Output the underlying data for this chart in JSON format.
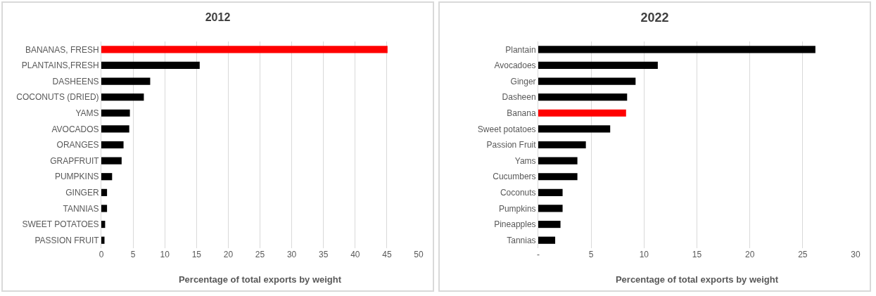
{
  "chart_data": [
    {
      "type": "bar",
      "title": "2012",
      "orientation": "horizontal",
      "xlabel": "Percentage of total exports by weight",
      "categories": [
        "BANANAS, FRESH",
        "PLANTAINS,FRESH",
        "DASHEENS",
        "COCONUTS (DRIED)",
        "YAMS",
        "AVOCADOS",
        "ORANGES",
        "GRAPFRUIT",
        "PUMPKINS",
        "GINGER",
        "TANNIAS",
        "SWEET POTATOES",
        "PASSION FRUIT"
      ],
      "values": [
        45.1,
        15.5,
        7.7,
        6.7,
        4.5,
        4.4,
        3.5,
        3.2,
        1.7,
        0.9,
        0.9,
        0.6,
        0.5
      ],
      "colors": [
        "#ff0000",
        "#000000",
        "#000000",
        "#000000",
        "#000000",
        "#000000",
        "#000000",
        "#000000",
        "#000000",
        "#000000",
        "#000000",
        "#000000",
        "#000000"
      ],
      "xlim": [
        0,
        50
      ],
      "xticks": [
        0,
        5,
        10,
        15,
        20,
        25,
        30,
        35,
        40,
        45,
        50
      ],
      "grid": "x"
    },
    {
      "type": "bar",
      "title": "2022",
      "orientation": "horizontal",
      "xlabel": "Percentage of total exports by weight",
      "categories": [
        "Plantain",
        "Avocadoes",
        "Ginger",
        "Dasheen",
        "Banana",
        "Sweet potatoes",
        "Passion Fruit",
        "Yams",
        "Cucumbers",
        "Coconuts",
        "Pumpkins",
        "Pineapples",
        "Tannias"
      ],
      "values": [
        26.2,
        11.3,
        9.2,
        8.4,
        8.3,
        6.8,
        4.5,
        3.7,
        3.7,
        2.3,
        2.3,
        2.1,
        1.6
      ],
      "colors": [
        "#000000",
        "#000000",
        "#000000",
        "#000000",
        "#ff0000",
        "#000000",
        "#000000",
        "#000000",
        "#000000",
        "#000000",
        "#000000",
        "#000000",
        "#000000"
      ],
      "xlim": [
        0,
        30
      ],
      "xticks": [
        {
          "value": 0,
          "label": "-"
        },
        5,
        10,
        15,
        20,
        25,
        30
      ],
      "grid": "x"
    }
  ]
}
